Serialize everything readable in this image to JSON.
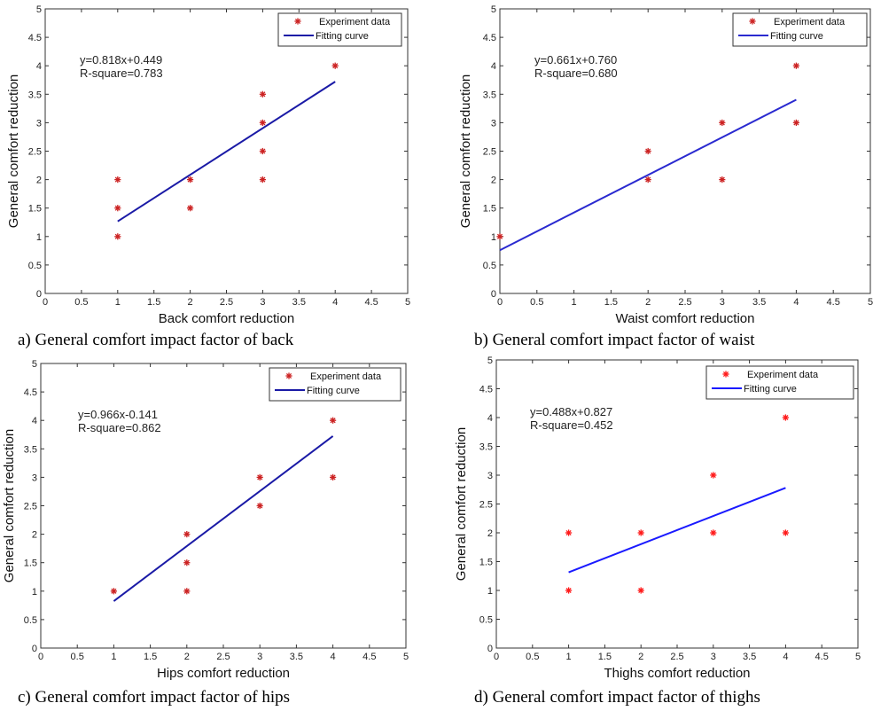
{
  "chart_data": [
    {
      "type": "scatter",
      "panel": "a",
      "caption": "a) General comfort impact factor of back",
      "xlabel": "Back comfort reduction",
      "ylabel": "General comfort reduction",
      "xlim": [
        0,
        5
      ],
      "ylim": [
        0,
        5
      ],
      "xticks": [
        "0",
        "0.5",
        "1",
        "1.5",
        "2",
        "2.5",
        "3",
        "3.5",
        "4",
        "4.5",
        "5"
      ],
      "yticks": [
        "0",
        "0.5",
        "1",
        "1.5",
        "2",
        "2.5",
        "3",
        "3.5",
        "4",
        "4.5",
        "5"
      ],
      "legend_position": "top-right",
      "series": [
        {
          "name": "Experiment data",
          "kind": "points",
          "color": "#cc2222",
          "points": [
            [
              1,
              1
            ],
            [
              1,
              1.5
            ],
            [
              1,
              2
            ],
            [
              2,
              1.5
            ],
            [
              2,
              2
            ],
            [
              3,
              2
            ],
            [
              3,
              2.5
            ],
            [
              3,
              3
            ],
            [
              3,
              3.5
            ],
            [
              4,
              4
            ]
          ]
        },
        {
          "name": "Fitting curve",
          "kind": "line",
          "color": "#1a1aa6",
          "slope": 0.818,
          "intercept": 0.449,
          "x_range": [
            1,
            4
          ]
        }
      ],
      "annotation": [
        "y=0.818x+0.449",
        "R-square=0.783"
      ]
    },
    {
      "type": "scatter",
      "panel": "b",
      "caption": "b) General comfort impact factor of waist",
      "xlabel": "Waist comfort reduction",
      "ylabel": "General comfort reduction",
      "xlim": [
        0,
        5
      ],
      "ylim": [
        0,
        5
      ],
      "xticks": [
        "0",
        "0.5",
        "1",
        "1.5",
        "2",
        "2.5",
        "3",
        "3.5",
        "4",
        "4.5",
        "5"
      ],
      "yticks": [
        "0",
        "0.5",
        "1",
        "1.5",
        "2",
        "2.5",
        "3",
        "3.5",
        "4",
        "4.5",
        "5"
      ],
      "legend_position": "top-right",
      "series": [
        {
          "name": "Experiment data",
          "kind": "points",
          "color": "#cc2222",
          "points": [
            [
              0,
              1
            ],
            [
              2,
              2
            ],
            [
              2,
              2.5
            ],
            [
              3,
              2
            ],
            [
              3,
              3
            ],
            [
              4,
              3
            ],
            [
              4,
              4
            ]
          ]
        },
        {
          "name": "Fitting curve",
          "kind": "line",
          "color": "#2a2ad0",
          "slope": 0.661,
          "intercept": 0.76,
          "x_range": [
            0,
            4
          ]
        }
      ],
      "annotation": [
        "y=0.661x+0.760",
        "R-square=0.680"
      ]
    },
    {
      "type": "scatter",
      "panel": "c",
      "caption": "c) General comfort impact factor of hips",
      "xlabel": "Hips comfort reduction",
      "ylabel": "General comfort reduction",
      "xlim": [
        0,
        5
      ],
      "ylim": [
        0,
        5
      ],
      "xticks": [
        "0",
        "0.5",
        "1",
        "1.5",
        "2",
        "2.5",
        "3",
        "3.5",
        "4",
        "4.5",
        "5"
      ],
      "yticks": [
        "0",
        "0.5",
        "1",
        "1.5",
        "2",
        "2.5",
        "3",
        "3.5",
        "4",
        "4.5",
        "5"
      ],
      "legend_position": "top-right",
      "series": [
        {
          "name": "Experiment data",
          "kind": "points",
          "color": "#cc2222",
          "points": [
            [
              1,
              1
            ],
            [
              2,
              1
            ],
            [
              2,
              1.5
            ],
            [
              2,
              2
            ],
            [
              3,
              2.5
            ],
            [
              3,
              3
            ],
            [
              4,
              3
            ],
            [
              4,
              4
            ]
          ]
        },
        {
          "name": "Fitting curve",
          "kind": "line",
          "color": "#1a1aa6",
          "slope": 0.966,
          "intercept": -0.141,
          "x_range": [
            1,
            4
          ]
        }
      ],
      "annotation": [
        "y=0.966x-0.141",
        "R-square=0.862"
      ]
    },
    {
      "type": "scatter",
      "panel": "d",
      "caption": "d) General comfort impact factor of thighs",
      "xlabel": "Thighs comfort reduction",
      "ylabel": "General comfort reduction",
      "xlim": [
        0,
        5
      ],
      "ylim": [
        0,
        5
      ],
      "xticks": [
        "0",
        "0.5",
        "1",
        "1.5",
        "2",
        "2.5",
        "3",
        "3.5",
        "4",
        "4.5",
        "5"
      ],
      "yticks": [
        "0",
        "0.5",
        "1",
        "1.5",
        "2",
        "2.5",
        "3",
        "3.5",
        "4",
        "4.5",
        "5"
      ],
      "legend_position": "top-right",
      "series": [
        {
          "name": "Experiment data",
          "kind": "points",
          "color": "#ff1a1a",
          "points": [
            [
              1,
              1
            ],
            [
              1,
              2
            ],
            [
              2,
              1
            ],
            [
              2,
              2
            ],
            [
              3,
              2
            ],
            [
              3,
              3
            ],
            [
              4,
              2
            ],
            [
              4,
              4
            ]
          ]
        },
        {
          "name": "Fitting curve",
          "kind": "line",
          "color": "#1a1aff",
          "slope": 0.488,
          "intercept": 0.827,
          "x_range": [
            1,
            4
          ]
        }
      ],
      "annotation": [
        "y=0.488x+0.827",
        "R-square=0.452"
      ]
    }
  ]
}
